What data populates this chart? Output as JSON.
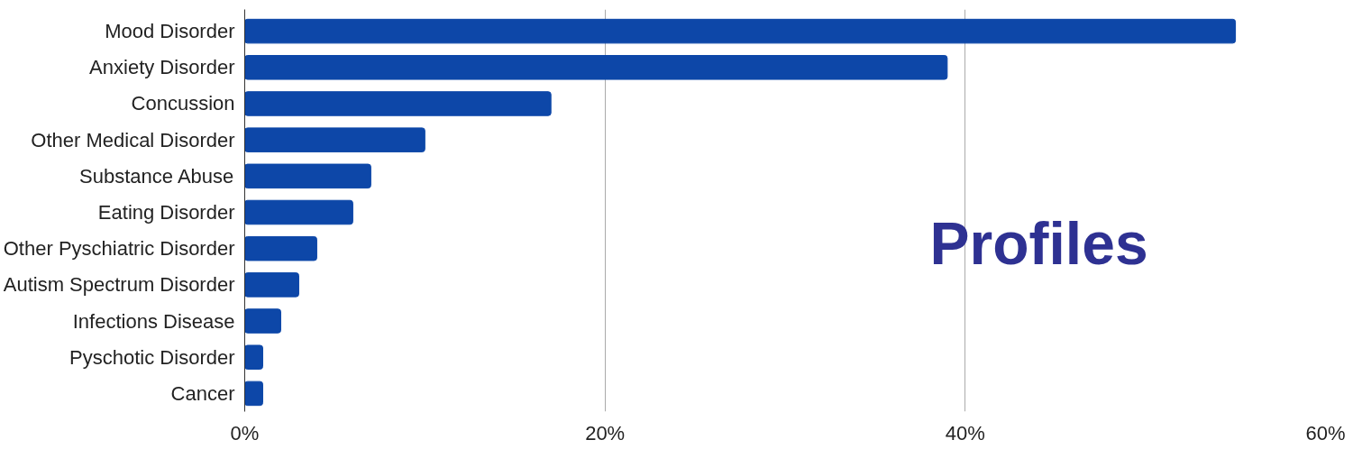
{
  "chart_data": {
    "type": "bar",
    "orientation": "horizontal",
    "categories": [
      "Mood Disorder",
      "Anxiety Disorder",
      "Concussion",
      "Other Medical Disorder",
      "Substance Abuse",
      "Eating Disorder",
      "Other Pyschiatric Disorder",
      "Autism Spectrum Disorder",
      "Infections Disease",
      "Pyschotic Disorder",
      "Cancer"
    ],
    "values": [
      55,
      39,
      17,
      10,
      7,
      6,
      4,
      3,
      2,
      1,
      1
    ],
    "color": "#0d47a8",
    "xlim": [
      0,
      60
    ],
    "xticks": [
      {
        "value": 0,
        "label": "0%"
      },
      {
        "value": 20,
        "label": "20%"
      },
      {
        "value": 40,
        "label": "40%"
      },
      {
        "value": 60,
        "label": "60%"
      }
    ],
    "grid": "x",
    "annotations": [
      "Profiles"
    ]
  }
}
